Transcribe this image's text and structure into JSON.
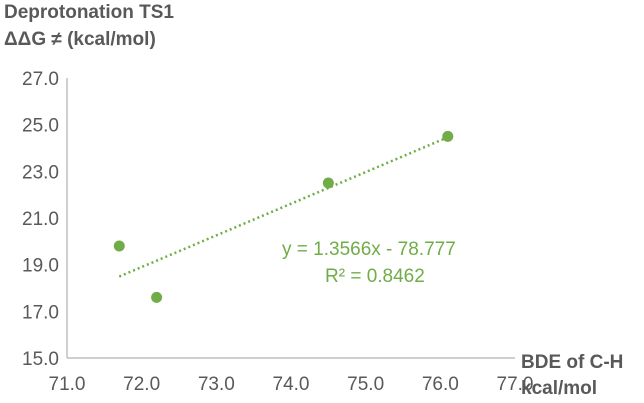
{
  "chart_data": {
    "type": "scatter",
    "ylabel_lines": [
      "Deprotonation TS1",
      "ΔΔG ≠ (kcal/mol)"
    ],
    "xlabel_lines": [
      "BDE of C-H",
      "kcal/mol"
    ],
    "xlim": [
      71.0,
      77.0
    ],
    "ylim": [
      15.0,
      27.0
    ],
    "xticks": [
      "71.0",
      "72.0",
      "73.0",
      "74.0",
      "75.0",
      "76.0",
      "77.0"
    ],
    "yticks": [
      "15.0",
      "17.0",
      "19.0",
      "21.0",
      "23.0",
      "25.0",
      "27.0"
    ],
    "grid": false,
    "points": [
      {
        "x": 71.7,
        "y": 19.8
      },
      {
        "x": 72.2,
        "y": 17.6
      },
      {
        "x": 74.5,
        "y": 22.5
      },
      {
        "x": 76.1,
        "y": 24.5
      }
    ],
    "trendline": {
      "type": "linear",
      "slope": 1.3566,
      "intercept": -78.777,
      "x_range": [
        71.7,
        76.1
      ],
      "style": "dotted",
      "equation_label": "y = 1.3566x - 78.777",
      "r2_label": "R² = 0.8462"
    },
    "colors": {
      "marker": "#70ad47",
      "trendline": "#70ad47",
      "axis": "#bfbfbf",
      "text": "#595959"
    }
  }
}
